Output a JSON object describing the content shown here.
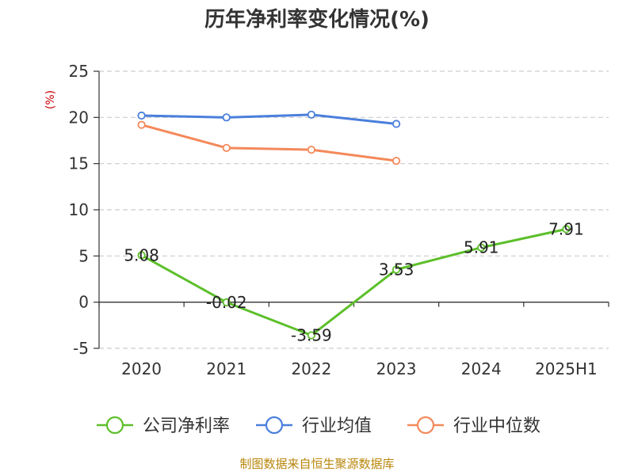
{
  "chart_data": {
    "type": "line",
    "title": "历年净利率变化情况(%)",
    "ylabel": "(%)",
    "xlabel": "",
    "categories": [
      "2020",
      "2021",
      "2022",
      "2023",
      "2024",
      "2025H1"
    ],
    "ylim": [
      -5,
      25
    ],
    "yticks": [
      -5,
      0,
      5,
      10,
      15,
      20,
      25
    ],
    "grid": true,
    "legend_position": "bottom",
    "series": [
      {
        "name": "公司净利率",
        "color": "#5cbf2a",
        "show_labels": true,
        "labels": [
          "5.08",
          "-0.02",
          "-3.59",
          "3.53",
          "5.91",
          "7.91"
        ],
        "values": [
          5.08,
          -0.02,
          -3.59,
          3.53,
          5.91,
          7.91
        ]
      },
      {
        "name": "行业均值",
        "color": "#4a7fdc",
        "show_labels": false,
        "values": [
          20.2,
          20.0,
          20.3,
          19.3,
          null,
          null
        ]
      },
      {
        "name": "行业中位数",
        "color": "#f4895a",
        "show_labels": false,
        "values": [
          19.2,
          16.7,
          16.5,
          15.3,
          null,
          null
        ]
      }
    ]
  },
  "source": "制图数据来自恒生聚源数据库"
}
